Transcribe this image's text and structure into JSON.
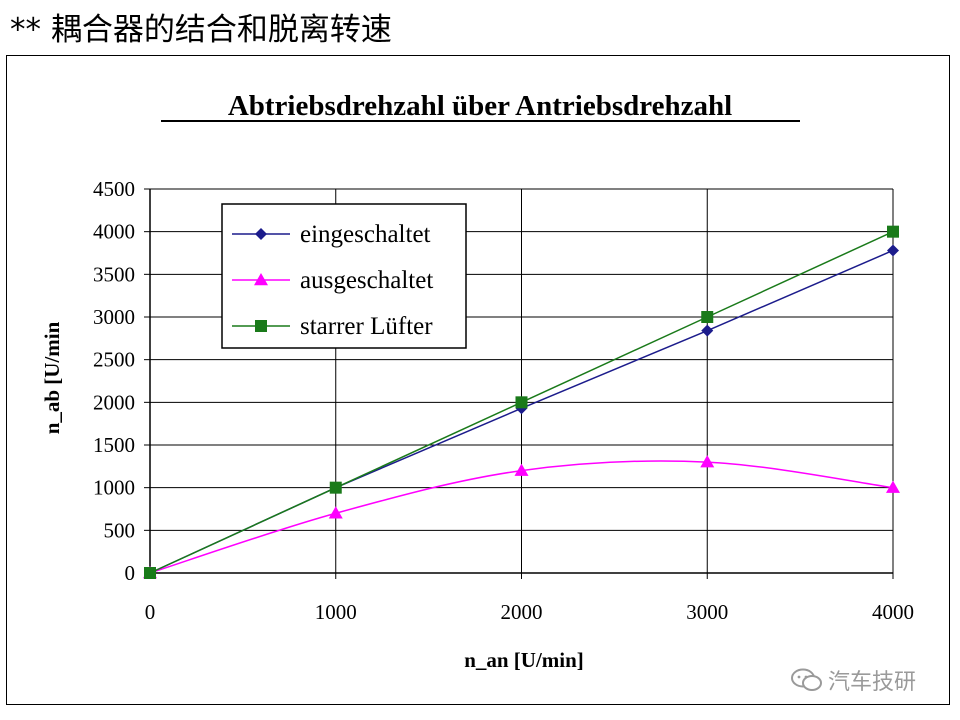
{
  "slide": {
    "heading": "** 耦合器的结合和脱离转速"
  },
  "watermark": {
    "text": "汽车技研",
    "icon": "wechat-icon"
  },
  "colors": {
    "eingeschaltet": "#1c1c8c",
    "ausgeschaltet": "#ff00ff",
    "starrer_luefter": "#1a7a1a",
    "grid": "#000000"
  },
  "chart_data": {
    "type": "line",
    "title": "Abtriebsdrehzahl über Antriebsdrehzahl",
    "xlabel": "n_an [U/min]",
    "ylabel": "n_ab [U/min",
    "xlim": [
      0,
      4000
    ],
    "ylim": [
      0,
      4500
    ],
    "x_ticks": [
      "0",
      "1000",
      "2000",
      "3000",
      "4000"
    ],
    "y_ticks": [
      "0",
      "500",
      "1000",
      "1500",
      "2000",
      "2500",
      "3000",
      "3500",
      "4000",
      "4500"
    ],
    "grid": true,
    "legend_position": "top-left",
    "x": [
      0,
      1000,
      2000,
      3000,
      4000
    ],
    "series": [
      {
        "name": "eingeschaltet",
        "marker": "diamond",
        "smooth": false,
        "values": [
          0,
          1000,
          1930,
          2840,
          3780
        ]
      },
      {
        "name": "ausgeschaltet",
        "marker": "triangle",
        "smooth": true,
        "values": [
          0,
          700,
          1200,
          1300,
          1000
        ]
      },
      {
        "name": "starrer Lüfter",
        "marker": "square",
        "smooth": false,
        "values": [
          0,
          1000,
          2000,
          3000,
          4000
        ]
      }
    ]
  }
}
